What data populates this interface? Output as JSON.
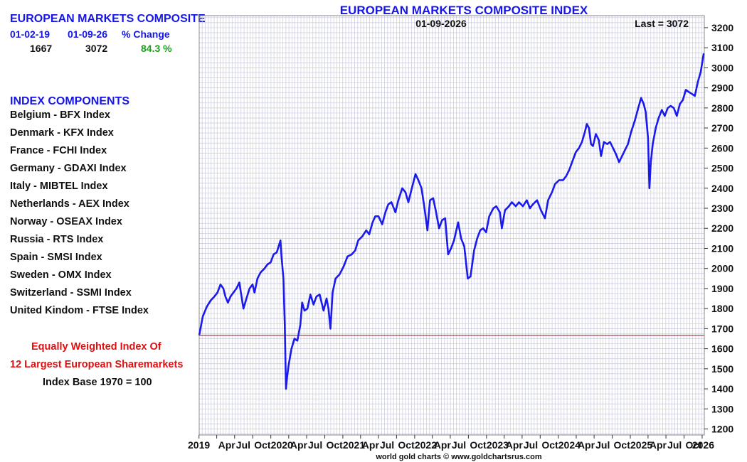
{
  "sidebar": {
    "title": "EUROPEAN MARKETS COMPOSITE",
    "headers": [
      "01-02-19",
      "01-09-26",
      "% Change"
    ],
    "values": [
      "1667",
      "3072",
      "84.3 %"
    ],
    "components_title": "INDEX COMPONENTS",
    "components": [
      "Belgium - BFX Index",
      "Denmark - KFX Index",
      "France - FCHI Index",
      "Germany - GDAXI Index",
      "Italy - MIBTEL Index",
      "Netherlands - AEX Index",
      "Norway - OSEAX Index",
      "Russia - RTS Index",
      "Spain - SMSI Index",
      "Sweden - OMX Index",
      "Switzerland - SSMI Index",
      "United Kindom - FTSE Index"
    ],
    "note_line1": "Equally Weighted Index Of",
    "note_line2": "12 Largest European Sharemarkets",
    "note_line3": "Index Base 1970 = 100"
  },
  "footer": "world gold charts © www.goldchartsrus.com",
  "chart_data": {
    "type": "line",
    "title": "EUROPEAN MARKETS COMPOSITE INDEX",
    "date_label": "01-09-2026",
    "last_label": "Last = 3072",
    "y_ticks": [
      "1200",
      "1300",
      "1400",
      "1500",
      "1600",
      "1700",
      "1800",
      "1900",
      "2000",
      "2100",
      "2200",
      "2300",
      "2400",
      "2500",
      "2600",
      "2700",
      "2800",
      "2900",
      "3000",
      "3100",
      "3200"
    ],
    "ylim": [
      1170,
      3260
    ],
    "xlim": [
      "2019-01-02",
      "2026-01-12"
    ],
    "x_tick_labels": [
      "2019",
      "Apr",
      "Jul",
      "Oct",
      "2020",
      "Apr",
      "Jul",
      "Oct",
      "2021",
      "Apr",
      "Jul",
      "Oct",
      "2022",
      "Apr",
      "Jul",
      "Oct",
      "2023",
      "Apr",
      "Jul",
      "Oct",
      "2024",
      "Apr",
      "Jul",
      "Oct",
      "2025",
      "Apr",
      "Jul",
      "Oct",
      "2026"
    ],
    "reference_line": 1667,
    "grid": true,
    "series": [
      {
        "color": "#1a1aee",
        "points": [
          [
            "2019-01-02",
            1667
          ],
          [
            "2019-01-20",
            1760
          ],
          [
            "2019-02-10",
            1810
          ],
          [
            "2019-03-01",
            1840
          ],
          [
            "2019-03-20",
            1860
          ],
          [
            "2019-04-05",
            1880
          ],
          [
            "2019-04-20",
            1920
          ],
          [
            "2019-05-05",
            1900
          ],
          [
            "2019-05-15",
            1860
          ],
          [
            "2019-05-28",
            1830
          ],
          [
            "2019-06-10",
            1860
          ],
          [
            "2019-06-25",
            1880
          ],
          [
            "2019-07-10",
            1900
          ],
          [
            "2019-07-25",
            1930
          ],
          [
            "2019-08-05",
            1860
          ],
          [
            "2019-08-15",
            1800
          ],
          [
            "2019-08-30",
            1850
          ],
          [
            "2019-09-15",
            1900
          ],
          [
            "2019-09-30",
            1920
          ],
          [
            "2019-10-10",
            1880
          ],
          [
            "2019-10-25",
            1950
          ],
          [
            "2019-11-10",
            1980
          ],
          [
            "2019-11-30",
            2000
          ],
          [
            "2019-12-15",
            2020
          ],
          [
            "2019-12-31",
            2030
          ],
          [
            "2020-01-15",
            2070
          ],
          [
            "2020-01-31",
            2080
          ],
          [
            "2020-02-10",
            2110
          ],
          [
            "2020-02-19",
            2140
          ],
          [
            "2020-02-25",
            2050
          ],
          [
            "2020-03-05",
            1950
          ],
          [
            "2020-03-12",
            1720
          ],
          [
            "2020-03-18",
            1400
          ],
          [
            "2020-03-24",
            1460
          ],
          [
            "2020-04-01",
            1520
          ],
          [
            "2020-04-15",
            1600
          ],
          [
            "2020-04-30",
            1650
          ],
          [
            "2020-05-15",
            1640
          ],
          [
            "2020-05-30",
            1720
          ],
          [
            "2020-06-08",
            1830
          ],
          [
            "2020-06-20",
            1790
          ],
          [
            "2020-07-05",
            1800
          ],
          [
            "2020-07-20",
            1870
          ],
          [
            "2020-08-05",
            1820
          ],
          [
            "2020-08-20",
            1860
          ],
          [
            "2020-09-05",
            1870
          ],
          [
            "2020-09-25",
            1790
          ],
          [
            "2020-10-10",
            1850
          ],
          [
            "2020-10-20",
            1800
          ],
          [
            "2020-10-30",
            1700
          ],
          [
            "2020-11-10",
            1880
          ],
          [
            "2020-11-25",
            1950
          ],
          [
            "2020-12-15",
            1970
          ],
          [
            "2021-01-05",
            2010
          ],
          [
            "2021-01-25",
            2060
          ],
          [
            "2021-02-15",
            2070
          ],
          [
            "2021-03-05",
            2090
          ],
          [
            "2021-03-20",
            2140
          ],
          [
            "2021-04-10",
            2160
          ],
          [
            "2021-04-30",
            2190
          ],
          [
            "2021-05-15",
            2170
          ],
          [
            "2021-06-01",
            2230
          ],
          [
            "2021-06-15",
            2260
          ],
          [
            "2021-07-01",
            2260
          ],
          [
            "2021-07-20",
            2220
          ],
          [
            "2021-08-05",
            2280
          ],
          [
            "2021-08-20",
            2320
          ],
          [
            "2021-09-05",
            2330
          ],
          [
            "2021-09-25",
            2280
          ],
          [
            "2021-10-10",
            2340
          ],
          [
            "2021-10-30",
            2400
          ],
          [
            "2021-11-15",
            2380
          ],
          [
            "2021-11-30",
            2330
          ],
          [
            "2021-12-15",
            2390
          ],
          [
            "2022-01-05",
            2470
          ],
          [
            "2022-01-20",
            2440
          ],
          [
            "2022-02-05",
            2400
          ],
          [
            "2022-02-20",
            2300
          ],
          [
            "2022-03-07",
            2190
          ],
          [
            "2022-03-20",
            2340
          ],
          [
            "2022-04-05",
            2350
          ],
          [
            "2022-04-20",
            2280
          ],
          [
            "2022-05-05",
            2200
          ],
          [
            "2022-05-20",
            2240
          ],
          [
            "2022-06-05",
            2250
          ],
          [
            "2022-06-20",
            2070
          ],
          [
            "2022-07-05",
            2100
          ],
          [
            "2022-07-20",
            2140
          ],
          [
            "2022-08-10",
            2230
          ],
          [
            "2022-08-25",
            2150
          ],
          [
            "2022-09-10",
            2110
          ],
          [
            "2022-09-28",
            1950
          ],
          [
            "2022-10-12",
            1960
          ],
          [
            "2022-10-30",
            2090
          ],
          [
            "2022-11-15",
            2150
          ],
          [
            "2022-11-30",
            2190
          ],
          [
            "2022-12-15",
            2200
          ],
          [
            "2022-12-30",
            2180
          ],
          [
            "2023-01-15",
            2260
          ],
          [
            "2023-02-05",
            2300
          ],
          [
            "2023-02-20",
            2310
          ],
          [
            "2023-03-10",
            2280
          ],
          [
            "2023-03-20",
            2200
          ],
          [
            "2023-04-05",
            2290
          ],
          [
            "2023-04-25",
            2310
          ],
          [
            "2023-05-10",
            2330
          ],
          [
            "2023-05-30",
            2310
          ],
          [
            "2023-06-15",
            2330
          ],
          [
            "2023-07-05",
            2310
          ],
          [
            "2023-07-25",
            2340
          ],
          [
            "2023-08-10",
            2300
          ],
          [
            "2023-08-25",
            2320
          ],
          [
            "2023-09-15",
            2340
          ],
          [
            "2023-10-05",
            2290
          ],
          [
            "2023-10-25",
            2250
          ],
          [
            "2023-11-10",
            2340
          ],
          [
            "2023-11-30",
            2380
          ],
          [
            "2023-12-15",
            2420
          ],
          [
            "2024-01-05",
            2440
          ],
          [
            "2024-01-25",
            2440
          ],
          [
            "2024-02-10",
            2460
          ],
          [
            "2024-02-25",
            2490
          ],
          [
            "2024-03-15",
            2540
          ],
          [
            "2024-03-30",
            2580
          ],
          [
            "2024-04-15",
            2600
          ],
          [
            "2024-04-30",
            2630
          ],
          [
            "2024-05-15",
            2680
          ],
          [
            "2024-05-25",
            2720
          ],
          [
            "2024-06-05",
            2700
          ],
          [
            "2024-06-15",
            2620
          ],
          [
            "2024-06-25",
            2610
          ],
          [
            "2024-07-10",
            2670
          ],
          [
            "2024-07-25",
            2640
          ],
          [
            "2024-08-05",
            2560
          ],
          [
            "2024-08-20",
            2630
          ],
          [
            "2024-09-05",
            2620
          ],
          [
            "2024-09-20",
            2630
          ],
          [
            "2024-10-05",
            2600
          ],
          [
            "2024-10-20",
            2570
          ],
          [
            "2024-11-05",
            2530
          ],
          [
            "2024-11-20",
            2560
          ],
          [
            "2024-12-05",
            2590
          ],
          [
            "2024-12-20",
            2620
          ],
          [
            "2025-01-05",
            2680
          ],
          [
            "2025-01-25",
            2740
          ],
          [
            "2025-02-10",
            2800
          ],
          [
            "2025-02-25",
            2850
          ],
          [
            "2025-03-10",
            2820
          ],
          [
            "2025-03-20",
            2780
          ],
          [
            "2025-04-01",
            2650
          ],
          [
            "2025-04-08",
            2400
          ],
          [
            "2025-04-15",
            2530
          ],
          [
            "2025-04-25",
            2620
          ],
          [
            "2025-05-10",
            2700
          ],
          [
            "2025-05-25",
            2750
          ],
          [
            "2025-06-10",
            2790
          ],
          [
            "2025-06-25",
            2760
          ],
          [
            "2025-07-10",
            2800
          ],
          [
            "2025-07-25",
            2810
          ],
          [
            "2025-08-10",
            2800
          ],
          [
            "2025-08-25",
            2760
          ],
          [
            "2025-09-10",
            2820
          ],
          [
            "2025-09-25",
            2840
          ],
          [
            "2025-10-10",
            2890
          ],
          [
            "2025-10-25",
            2880
          ],
          [
            "2025-11-10",
            2870
          ],
          [
            "2025-11-25",
            2860
          ],
          [
            "2025-12-10",
            2930
          ],
          [
            "2025-12-25",
            2980
          ],
          [
            "2026-01-05",
            3050
          ],
          [
            "2026-01-09",
            3072
          ]
        ]
      }
    ]
  },
  "colors": {
    "line": "#1a1aee",
    "reference_line": "#cc0000",
    "grid": "#c8c8dc",
    "title": "#1616e8",
    "positive": "#1e9e1e",
    "note": "#e01010"
  }
}
